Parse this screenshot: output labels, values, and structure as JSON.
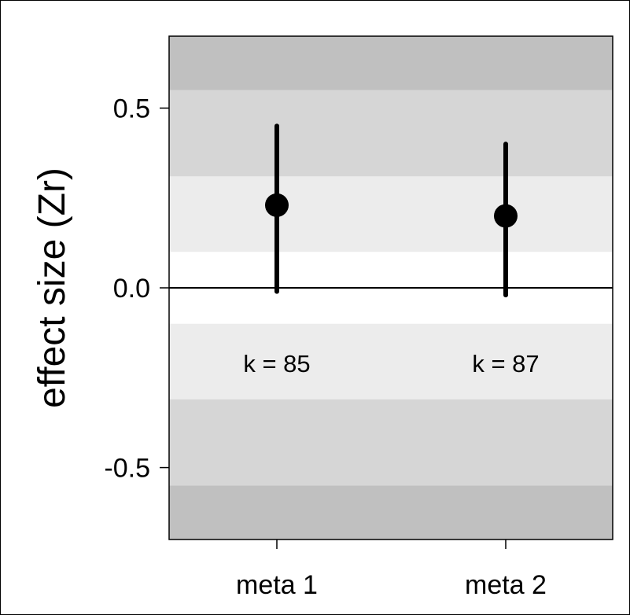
{
  "chart_data": {
    "type": "scatter",
    "ylabel": "effect size (Zr)",
    "ylim": [
      -0.7,
      0.7
    ],
    "yticks": [
      {
        "value": 0.5,
        "label": "0.5"
      },
      {
        "value": 0.0,
        "label": "0.0"
      },
      {
        "value": -0.5,
        "label": "-0.5"
      }
    ],
    "reference_line": 0.0,
    "background_bands": [
      {
        "from": -0.1,
        "to": 0.1,
        "color": "#ffffff"
      },
      {
        "from": 0.1,
        "to": 0.31,
        "color": "#ececec"
      },
      {
        "from": -0.31,
        "to": -0.1,
        "color": "#ececec"
      },
      {
        "from": 0.31,
        "to": 0.55,
        "color": "#d6d6d6"
      },
      {
        "from": -0.55,
        "to": -0.31,
        "color": "#d6d6d6"
      },
      {
        "from": 0.55,
        "to": 0.7,
        "color": "#c0c0c0"
      },
      {
        "from": -0.7,
        "to": -0.55,
        "color": "#c0c0c0"
      }
    ],
    "points": [
      {
        "category": "meta 1",
        "estimate": 0.23,
        "ci_lower": -0.01,
        "ci_upper": 0.45,
        "k_label": "k = 85"
      },
      {
        "category": "meta 2",
        "estimate": 0.2,
        "ci_lower": -0.02,
        "ci_upper": 0.4,
        "k_label": "k = 87"
      }
    ],
    "k_label_y": -0.21,
    "grid": false,
    "legend": "none"
  }
}
